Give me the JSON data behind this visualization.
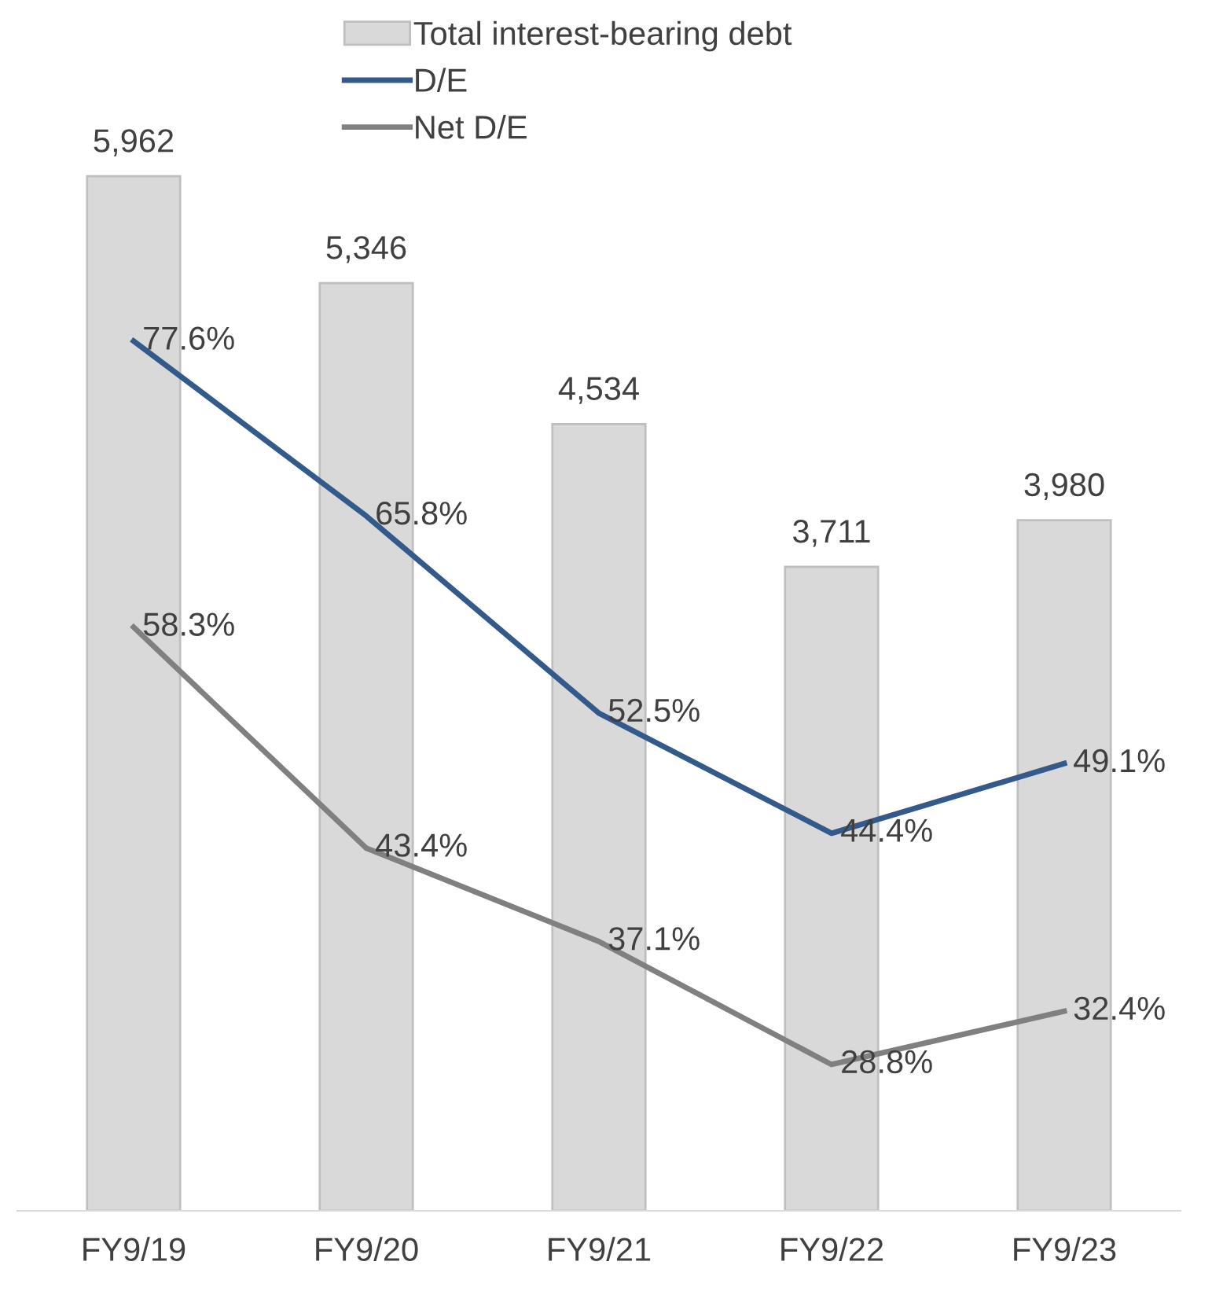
{
  "chart_data": {
    "type": "bar",
    "categories": [
      "FY9/19",
      "FY9/20",
      "FY9/21",
      "FY9/22",
      "FY9/23"
    ],
    "series": [
      {
        "name": "Total interest-bearing debt",
        "color": "#d9d9d9",
        "values": [
          5962,
          5346,
          4534,
          3711,
          3980
        ],
        "value_labels": [
          "5,962",
          "5,346",
          "4,534",
          "3,711",
          "3,980"
        ]
      },
      {
        "name": "D/E",
        "type": "line",
        "axis": "y2",
        "color": "#335a8a",
        "values": [
          77.6,
          65.8,
          52.5,
          44.4,
          49.1
        ],
        "value_labels": [
          "77.6%",
          "65.8%",
          "52.5%",
          "44.4%",
          "49.1%"
        ]
      },
      {
        "name": "Net D/E",
        "type": "line",
        "axis": "y2",
        "color": "#808080",
        "values": [
          58.3,
          43.4,
          37.1,
          28.8,
          32.4
        ],
        "value_labels": [
          "58.3%",
          "43.4%",
          "37.1%",
          "28.8%",
          "32.4%"
        ]
      }
    ],
    "tick_labels": "x",
    "legend": "top",
    "grid": false,
    "marker": "none",
    "line_style": "solid"
  }
}
